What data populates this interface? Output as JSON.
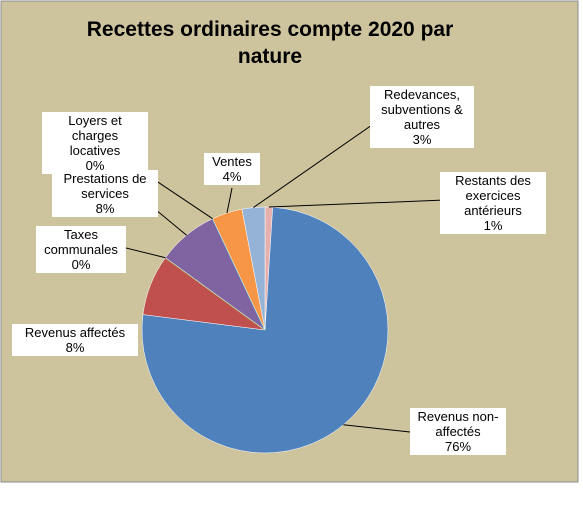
{
  "chart_data": {
    "type": "pie",
    "title": "Recettes ordinaires compte 2020 par nature",
    "categories": [
      "Restants des exercices antérieurs",
      "Revenus non-affectés",
      "Revenus affectés",
      "Taxes communales",
      "Prestations de services",
      "Loyers et charges locatives",
      "Ventes",
      "Redevances, subventions & autres"
    ],
    "values": [
      1,
      76,
      8,
      0,
      8,
      0,
      4,
      3
    ],
    "value_labels": [
      "1%",
      "76%",
      "8%",
      "0%",
      "8%",
      "0%",
      "4%",
      "3%"
    ],
    "colors": [
      "#e6b0ae",
      "#4f81bd",
      "#c0504d",
      "#9bbb59",
      "#8064a2",
      "#4bacc6",
      "#f79646",
      "#95b3d7"
    ]
  }
}
